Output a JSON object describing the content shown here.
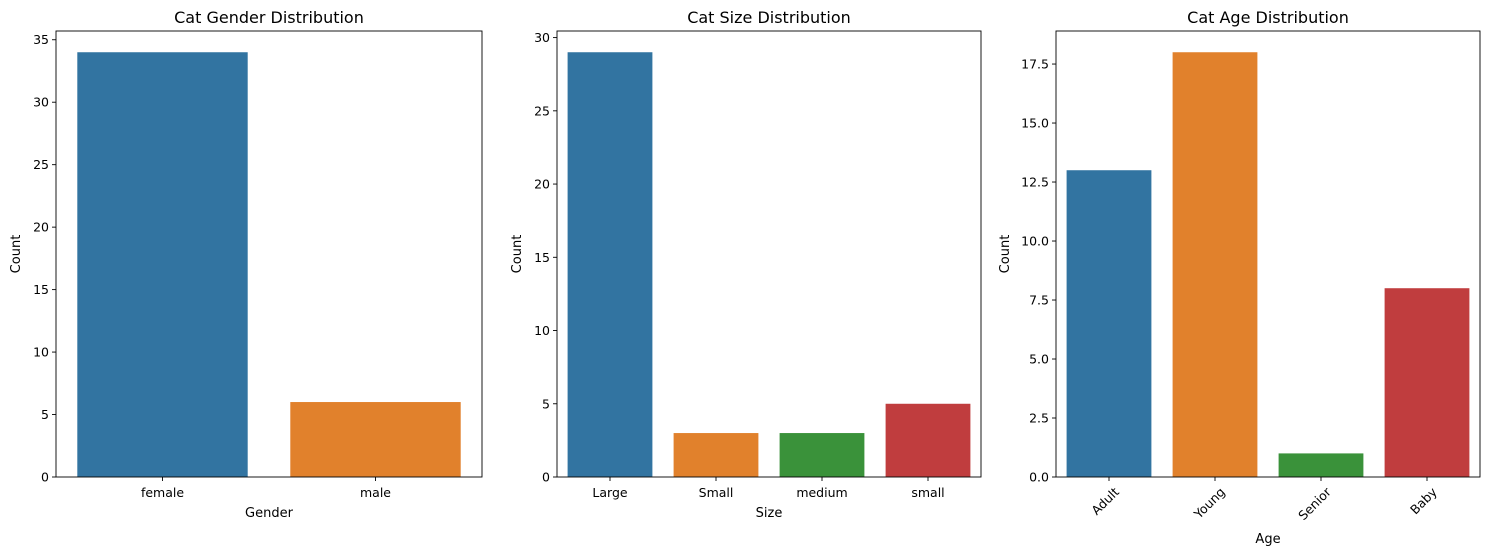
{
  "chart_data": [
    {
      "type": "bar",
      "title": "Cat Gender Distribution",
      "xlabel": "Gender",
      "ylabel": "Count",
      "categories": [
        "female",
        "male"
      ],
      "values": [
        34,
        6
      ],
      "colors": [
        "#3274a1",
        "#e1812c"
      ],
      "ylim": [
        0,
        35.7
      ],
      "yticks": [
        0,
        5,
        10,
        15,
        20,
        25,
        30,
        35
      ],
      "ytick_labels": [
        "0",
        "5",
        "10",
        "15",
        "20",
        "25",
        "30",
        "35"
      ],
      "xtick_rotation": 0
    },
    {
      "type": "bar",
      "title": "Cat Size Distribution",
      "xlabel": "Size",
      "ylabel": "Count",
      "categories": [
        "Large",
        "Small",
        "medium",
        "small"
      ],
      "values": [
        29,
        3,
        3,
        5
      ],
      "colors": [
        "#3274a1",
        "#e1812c",
        "#3a923a",
        "#c03d3e"
      ],
      "ylim": [
        0,
        30.45
      ],
      "yticks": [
        0,
        5,
        10,
        15,
        20,
        25,
        30
      ],
      "ytick_labels": [
        "0",
        "5",
        "10",
        "15",
        "20",
        "25",
        "30"
      ],
      "xtick_rotation": 0
    },
    {
      "type": "bar",
      "title": "Cat Age Distribution",
      "xlabel": "Age",
      "ylabel": "Count",
      "categories": [
        "Adult",
        "Young",
        "Senior",
        "Baby"
      ],
      "values": [
        13,
        18,
        1,
        8
      ],
      "colors": [
        "#3274a1",
        "#e1812c",
        "#3a923a",
        "#c03d3e"
      ],
      "ylim": [
        0,
        18.9
      ],
      "yticks": [
        0,
        2.5,
        5,
        7.5,
        10,
        12.5,
        15,
        17.5
      ],
      "ytick_labels": [
        "0.0",
        "2.5",
        "5.0",
        "7.5",
        "10.0",
        "12.5",
        "15.0",
        "17.5"
      ],
      "xtick_rotation": -45
    }
  ]
}
